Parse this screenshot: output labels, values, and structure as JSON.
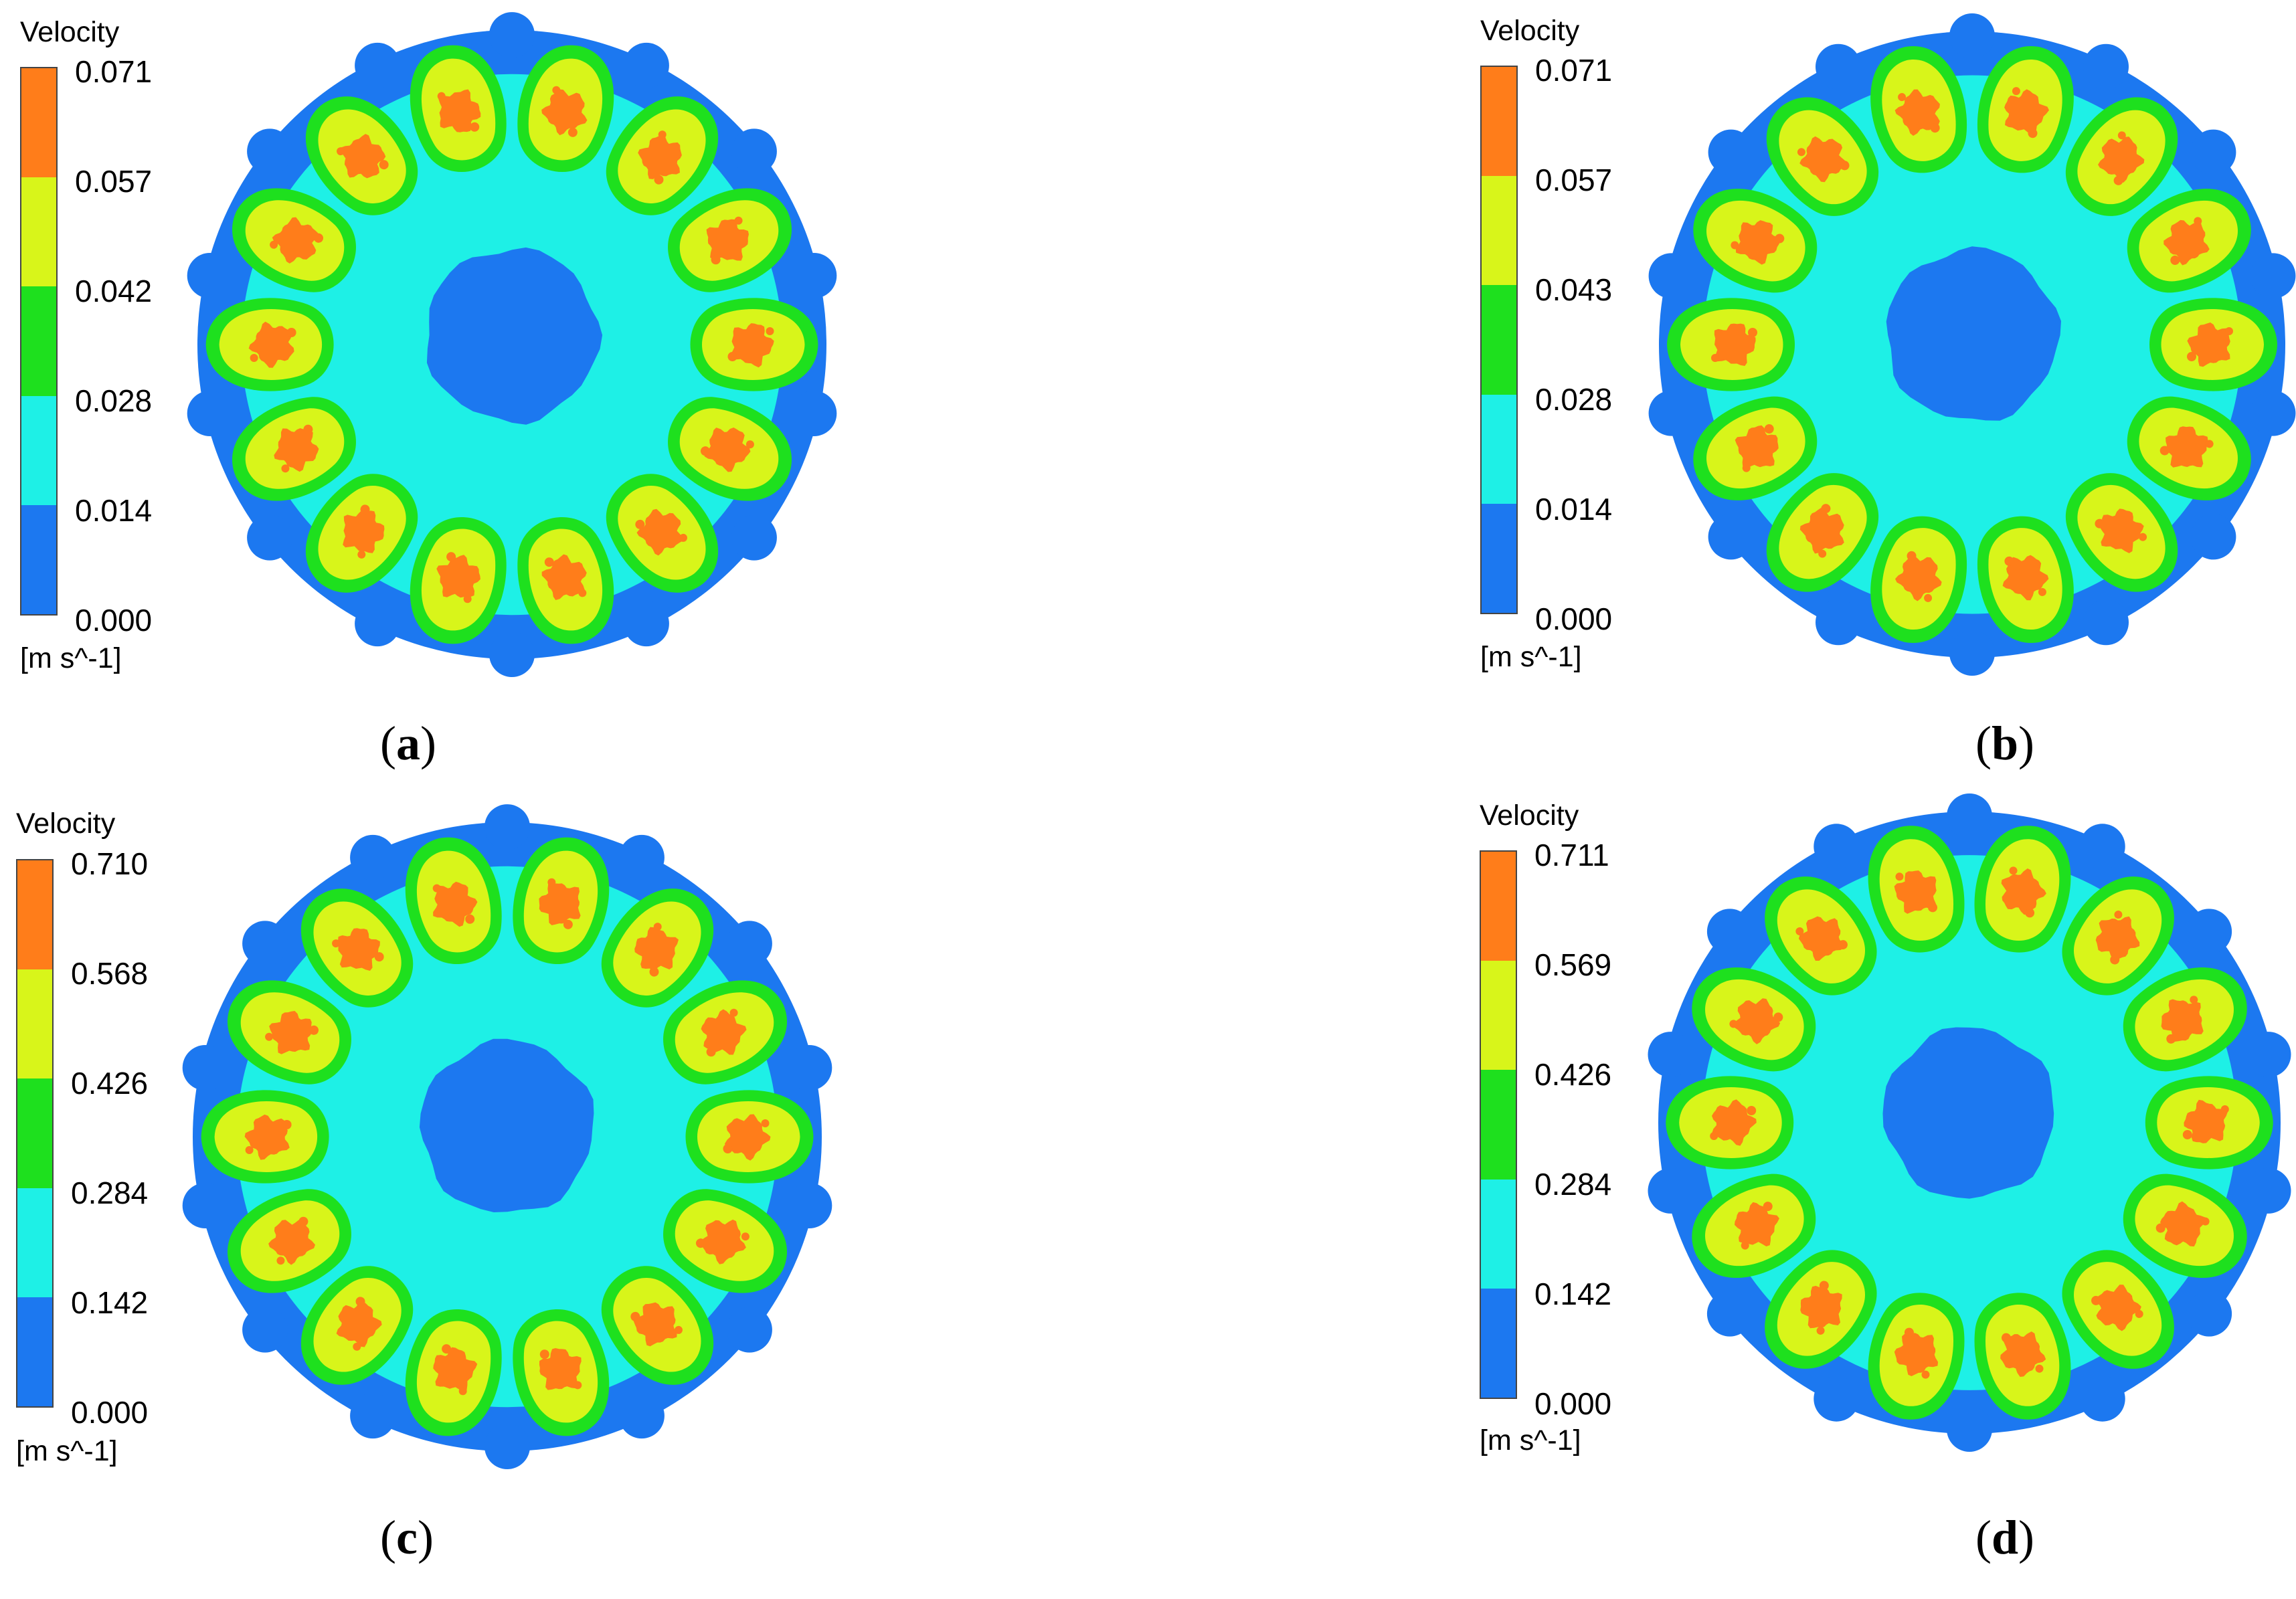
{
  "colors": {
    "band_0": "#1c78f0",
    "band_1": "#1ef0e6",
    "band_2": "#1ee01e",
    "band_3": "#d8f51a",
    "band_4": "#ff7d1a",
    "background": "#ffffff"
  },
  "panels": [
    {
      "id": "a",
      "legend_title": "Velocity",
      "ticks": [
        "0.071",
        "0.057",
        "0.042",
        "0.028",
        "0.014",
        "0.000"
      ],
      "unit": "[m s^-1]",
      "caption_open": "(",
      "caption_letter": "a",
      "caption_close": ")"
    },
    {
      "id": "b",
      "legend_title": "Velocity",
      "ticks": [
        "0.071",
        "0.057",
        "0.043",
        "0.028",
        "0.014",
        "0.000"
      ],
      "unit": "[m s^-1]",
      "caption_open": "(",
      "caption_letter": "b",
      "caption_close": ")"
    },
    {
      "id": "c",
      "legend_title": "Velocity",
      "ticks": [
        "0.710",
        "0.568",
        "0.426",
        "0.284",
        "0.142",
        "0.000"
      ],
      "unit": "[m s^-1]",
      "caption_open": "(",
      "caption_letter": "c",
      "caption_close": ")"
    },
    {
      "id": "d",
      "legend_title": "Velocity",
      "ticks": [
        "0.711",
        "0.569",
        "0.426",
        "0.284",
        "0.142",
        "0.000"
      ],
      "unit": "[m s^-1]",
      "caption_open": "(",
      "caption_letter": "d",
      "caption_close": ")"
    }
  ],
  "contour": {
    "lobe_count": 14
  }
}
